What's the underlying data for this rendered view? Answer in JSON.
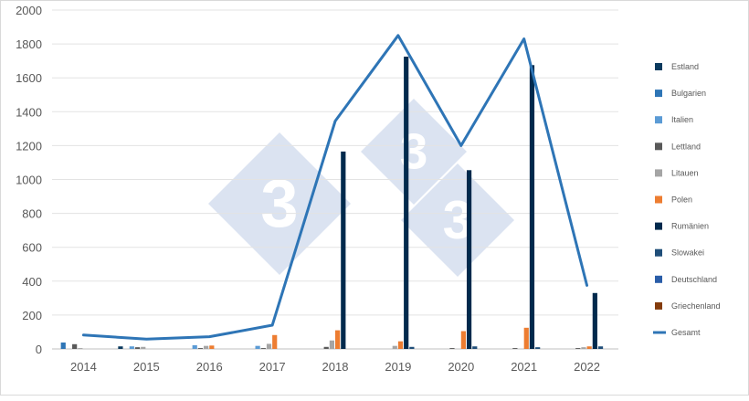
{
  "chart_data": {
    "type": "bar",
    "categories": [
      "2014",
      "2015",
      "2016",
      "2017",
      "2018",
      "2019",
      "2020",
      "2021",
      "2022"
    ],
    "ylim": [
      0,
      2000
    ],
    "yticks": [
      "0",
      "200",
      "400",
      "600",
      "800",
      "1000",
      "1200",
      "1400",
      "1600",
      "1800",
      "2000"
    ],
    "grid": true,
    "legend_position": "right",
    "series": [
      {
        "name": "Estland",
        "color": "#0b3a5e",
        "values": [
          0,
          15,
          0,
          0,
          0,
          0,
          0,
          0,
          0
        ]
      },
      {
        "name": "Bulgarien",
        "color": "#2e75b6",
        "values": [
          38,
          0,
          0,
          0,
          0,
          0,
          0,
          0,
          0
        ]
      },
      {
        "name": "Italien",
        "color": "#5b9bd5",
        "values": [
          0,
          15,
          22,
          18,
          0,
          0,
          0,
          0,
          0
        ]
      },
      {
        "name": "Lettland",
        "color": "#595959",
        "values": [
          28,
          10,
          5,
          5,
          12,
          0,
          5,
          5,
          5
        ]
      },
      {
        "name": "Litauen",
        "color": "#a5a5a5",
        "values": [
          5,
          12,
          18,
          30,
          50,
          18,
          0,
          0,
          10
        ]
      },
      {
        "name": "Polen",
        "color": "#ed7d31",
        "values": [
          0,
          0,
          20,
          82,
          110,
          45,
          105,
          125,
          15
        ]
      },
      {
        "name": "Rumänien",
        "color": "#002a4d",
        "values": [
          0,
          0,
          0,
          0,
          1165,
          1725,
          1055,
          1675,
          330
        ]
      },
      {
        "name": "Slowakei",
        "color": "#1f4e79",
        "values": [
          0,
          0,
          0,
          0,
          0,
          12,
          15,
          10,
          15
        ]
      },
      {
        "name": "Deutschland",
        "color": "#2a5da8",
        "values": [
          0,
          0,
          0,
          0,
          0,
          0,
          0,
          0,
          0
        ]
      },
      {
        "name": "Griechenland",
        "color": "#843c0c",
        "values": [
          0,
          0,
          0,
          0,
          0,
          0,
          0,
          0,
          0
        ]
      }
    ],
    "line": {
      "name": "Gesamt",
      "color": "#2e75b6",
      "values": [
        82,
        58,
        72,
        140,
        1345,
        1850,
        1200,
        1830,
        375
      ]
    },
    "watermark": "3"
  }
}
